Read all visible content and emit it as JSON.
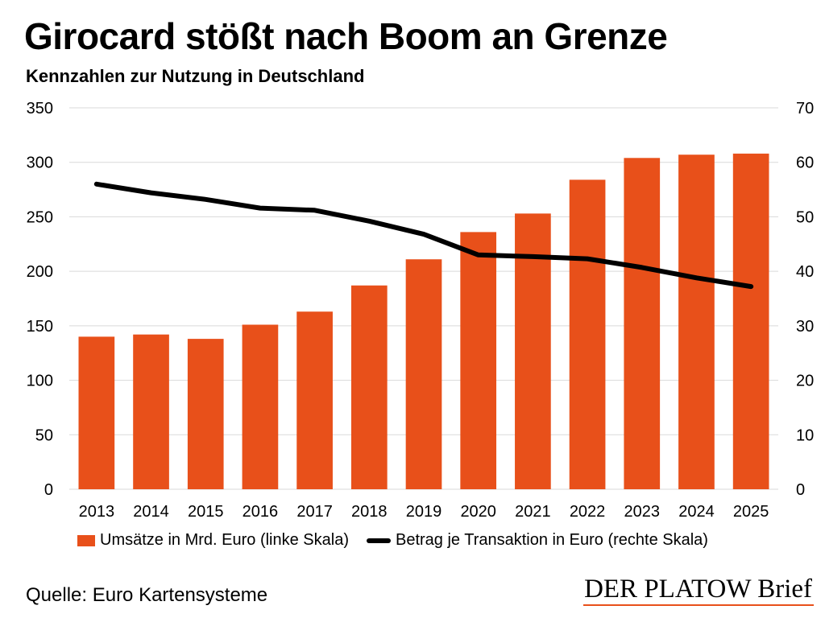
{
  "header": {
    "title": "Girocard stößt nach Boom an Grenze",
    "subtitle": "Kennzahlen zur Nutzung in Deutschland"
  },
  "colors": {
    "bar": "#e8501a",
    "line": "#000000",
    "grid": "#d9d9d9"
  },
  "chart_data": {
    "type": "bar",
    "categories": [
      "2013",
      "2014",
      "2015",
      "2016",
      "2017",
      "2018",
      "2019",
      "2020",
      "2021",
      "2022",
      "2023",
      "2024",
      "2025"
    ],
    "series": [
      {
        "name": "Umsätze in Mrd. Euro (linke Skala)",
        "type": "bar",
        "axis": "left",
        "values": [
          140,
          142,
          138,
          151,
          163,
          187,
          211,
          236,
          253,
          284,
          304,
          307,
          308
        ]
      },
      {
        "name": "Betrag je Transaktion in Euro (rechte Skala)",
        "type": "line",
        "axis": "right",
        "values": [
          56.0,
          54.4,
          53.2,
          51.6,
          51.2,
          49.2,
          46.8,
          43.0,
          42.7,
          42.3,
          40.7,
          38.8,
          37.2
        ]
      }
    ],
    "y_left": {
      "ticks": [
        "0",
        "50",
        "100",
        "150",
        "200",
        "250",
        "300",
        "350"
      ],
      "ylim": [
        0,
        350
      ]
    },
    "y_right": {
      "ticks": [
        "0",
        "10",
        "20",
        "30",
        "40",
        "50",
        "60",
        "70"
      ],
      "ylim": [
        0,
        70
      ]
    },
    "grid": true,
    "legend_position": "bottom"
  },
  "footer": {
    "source": "Quelle: Euro Kartensysteme",
    "brand": "DER PLATOW Brief"
  }
}
